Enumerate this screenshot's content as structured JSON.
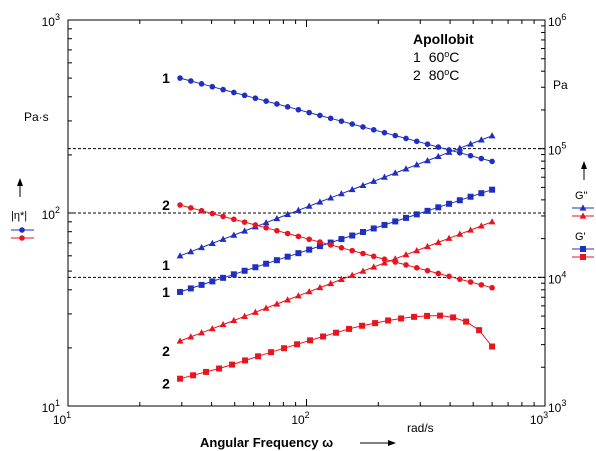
{
  "chart_data": {
    "type": "line",
    "x_axis": {
      "label": "Angular Frequency ω",
      "unit": "rad/s",
      "scale": "log",
      "range": [
        10,
        1000
      ],
      "ticks": [
        {
          "base": "10",
          "exp": "1"
        },
        {
          "base": "10",
          "exp": "2"
        },
        {
          "base": "10",
          "exp": "3"
        }
      ]
    },
    "y_left": {
      "unit": "Pa·s",
      "scale": "log",
      "range": [
        10,
        1000
      ],
      "ticks": [
        {
          "base": "10",
          "exp": "1"
        },
        {
          "base": "10",
          "exp": "2"
        },
        {
          "base": "10",
          "exp": "3"
        }
      ]
    },
    "y_right": {
      "unit": "Pa",
      "scale": "log",
      "range": [
        1000,
        1000000
      ],
      "ticks": [
        {
          "base": "10",
          "exp": "3"
        },
        {
          "base": "10",
          "exp": "4"
        },
        {
          "base": "10",
          "exp": "5"
        },
        {
          "base": "10",
          "exp": "6"
        }
      ]
    },
    "annotation": {
      "title": "Apollobit",
      "lines": [
        {
          "num": "1",
          "temp": "60",
          "deg": "o",
          "unit": "C"
        },
        {
          "num": "2",
          "temp": "80",
          "deg": "o",
          "unit": "C"
        }
      ]
    },
    "legend": [
      {
        "label": "|η*|",
        "items": [
          {
            "color": "#1f2fc0",
            "marker": "circle"
          },
          {
            "color": "#e8141e",
            "marker": "circle"
          }
        ]
      },
      {
        "label": "G''",
        "items": [
          {
            "color": "#1f2fc0",
            "marker": "triangle"
          },
          {
            "color": "#e8141e",
            "marker": "triangle"
          }
        ]
      },
      {
        "label": "G'",
        "items": [
          {
            "color": "#1f2fc0",
            "marker": "square"
          },
          {
            "color": "#e8141e",
            "marker": "square"
          }
        ]
      }
    ],
    "reference_lines": [
      {
        "axis": "y_right",
        "value": 100000
      },
      {
        "axis": "y_right",
        "value": 31623
      },
      {
        "axis": "y_right",
        "value": 10000
      }
    ],
    "series": [
      {
        "name": "1",
        "quantity": "|η*|",
        "axis": "left",
        "color": "#1f2fc0",
        "marker": "circle",
        "x_start": 29.5,
        "x_end": 600,
        "y_start": 500,
        "y_end": 185,
        "profile": "linear"
      },
      {
        "name": "1",
        "quantity": "G''",
        "axis": "right",
        "color": "#1f2fc0",
        "marker": "triangle",
        "x_start": 29.5,
        "x_end": 600,
        "y_start": 14700,
        "y_end": 126000,
        "profile": "linear"
      },
      {
        "name": "1",
        "quantity": "G'",
        "axis": "right",
        "color": "#1f2fc0",
        "marker": "square",
        "x_start": 29.5,
        "x_end": 600,
        "y_start": 7700,
        "y_end": 48000,
        "profile": "linear"
      },
      {
        "name": "2",
        "quantity": "|η*|",
        "axis": "left",
        "color": "#e8141e",
        "marker": "circle",
        "x_start": 29.5,
        "x_end": 600,
        "y_start": 110,
        "y_end": 41,
        "profile": "linear"
      },
      {
        "name": "2",
        "quantity": "G''",
        "axis": "right",
        "color": "#e8141e",
        "marker": "triangle",
        "x_start": 29.5,
        "x_end": 600,
        "y_start": 3200,
        "y_end": 27000,
        "profile": "linear"
      },
      {
        "name": "2",
        "quantity": "G'",
        "axis": "right",
        "color": "#e8141e",
        "marker": "square",
        "axis_note": "peak",
        "x_start": 29.5,
        "x_end": 600,
        "y_start": 1630,
        "y_end": 2900,
        "points": [
          [
            29.5,
            1630
          ],
          [
            45,
            2000
          ],
          [
            70,
            2600
          ],
          [
            110,
            3350
          ],
          [
            160,
            4100
          ],
          [
            230,
            4700
          ],
          [
            300,
            5000
          ],
          [
            380,
            5050
          ],
          [
            450,
            4700
          ],
          [
            520,
            4050
          ],
          [
            560,
            3400
          ],
          [
            600,
            2900
          ]
        ]
      }
    ]
  }
}
